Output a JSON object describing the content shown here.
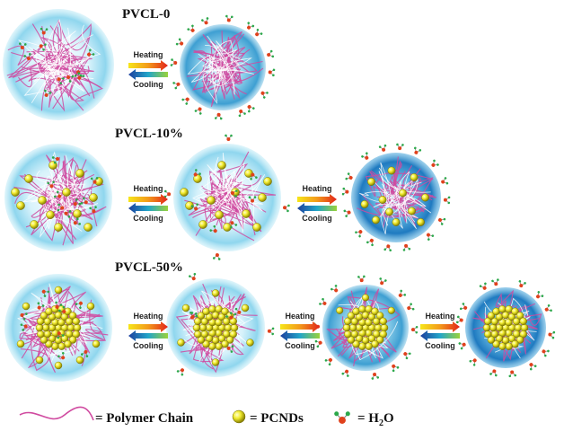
{
  "titles": {
    "pvcl0": "PVCL-0",
    "pvcl10": "PVCL-10%",
    "pvcl50": "PVCL-50%"
  },
  "arrows": {
    "heating": "Heating",
    "cooling": "Cooling"
  },
  "legend": {
    "polymer": "= Polymer Chain",
    "pcnds": "= PCNDs",
    "h2o_prefix": "= H",
    "h2o_sub": "2",
    "h2o_suffix": "O"
  },
  "colors": {
    "particle_light": "#62c9e8",
    "particle_dark": "#1e7fb6",
    "chain": "#d04aa0",
    "pcnd": "#e8e020",
    "water_h": "#2ba84a",
    "water_o": "#e0411c"
  },
  "icons": {
    "arrow_heating": "right-arrow-icon",
    "arrow_cooling": "left-arrow-icon",
    "pcnd": "yellow-sphere-icon",
    "water": "water-molecule-icon"
  }
}
